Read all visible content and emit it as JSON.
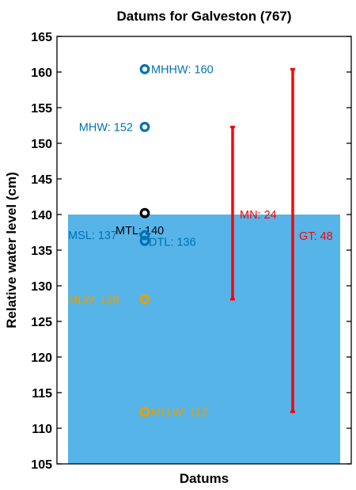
{
  "chart_data": {
    "type": "scatter",
    "title": "Datums for Galveston (767)",
    "xlabel": "Datums",
    "ylabel": "Relative water level (cm)",
    "ylim": [
      105,
      165
    ],
    "yticks": [
      105,
      110,
      115,
      120,
      125,
      130,
      135,
      140,
      145,
      150,
      155,
      160,
      165
    ],
    "grid": false,
    "legend": "none",
    "colors": {
      "water_fill": "#56b4e9",
      "blue": "#0072b2",
      "orange": "#e69f00",
      "black": "#000000",
      "red": "#ff0000"
    },
    "water_level": 140,
    "points": [
      {
        "name": "MHHW",
        "label": "MHHW: 160",
        "value": 160.4,
        "color": "#0072b2"
      },
      {
        "name": "MHW",
        "label": "MHW: 152",
        "value": 152.3,
        "color": "#0072b2"
      },
      {
        "name": "MTL",
        "label": "MTL: 140",
        "value": 140.2,
        "color": "#000000"
      },
      {
        "name": "MSL",
        "label": "MSL: 137",
        "value": 137.1,
        "color": "#0072b2"
      },
      {
        "name": "DTL",
        "label": "DTL: 136",
        "value": 136.3,
        "color": "#0072b2"
      },
      {
        "name": "MLW",
        "label": "MLW: 128",
        "value": 128.1,
        "color": "#e69f00"
      },
      {
        "name": "MLLW",
        "label": "MLLW: 112",
        "value": 112.3,
        "color": "#e69f00"
      }
    ],
    "ranges": [
      {
        "name": "MN",
        "label": "MN: 24",
        "low": 128.1,
        "high": 152.3,
        "color": "#ff0000"
      },
      {
        "name": "GT",
        "label": "GT: 48",
        "low": 112.3,
        "high": 160.4,
        "color": "#ff0000"
      }
    ]
  }
}
